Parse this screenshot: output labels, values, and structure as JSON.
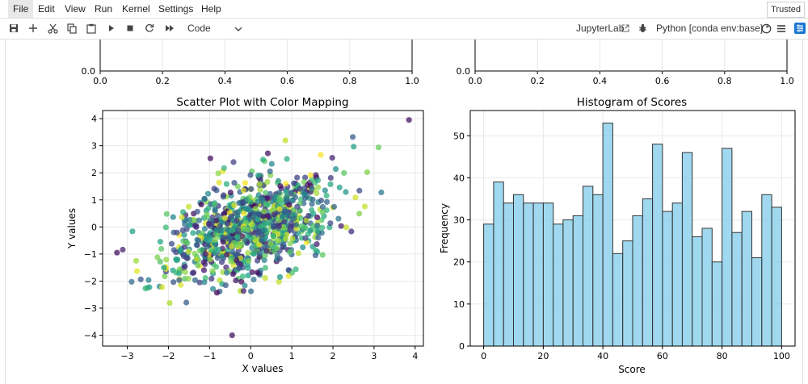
{
  "menubar": {
    "items": [
      "File",
      "Edit",
      "View",
      "Run",
      "Kernel",
      "Settings",
      "Help"
    ],
    "trusted": "Trusted"
  },
  "toolbar": {
    "cell_type": "Code",
    "jupyterlab_label": "JupyterLab",
    "kernel_name": "Python [conda env:base] *"
  },
  "icons": [
    "save-icon",
    "add-icon",
    "cut-icon",
    "copy-icon",
    "paste-icon",
    "run-icon",
    "stop-icon",
    "restart-icon",
    "fast-forward-icon",
    "chevron-down-icon",
    "external-link-icon",
    "bug-icon",
    "kernel-idle-icon",
    "menu-icon",
    "property-inspector-icon"
  ],
  "top_axes": {
    "ticks_x": [
      "0.0",
      "0.2",
      "0.4",
      "0.6",
      "0.8",
      "1.0"
    ],
    "tick_y": "0.0"
  },
  "chart_data": [
    {
      "type": "scatter",
      "title": "Scatter Plot with Color Mapping",
      "xlabel": "X values",
      "ylabel": "Y values",
      "xlim": [
        -3.6,
        4.2
      ],
      "ylim": [
        -4.4,
        4.3
      ],
      "xticks": [
        "−3",
        "−2",
        "−1",
        "0",
        "1",
        "2",
        "3",
        "4"
      ],
      "yticks": [
        "−4",
        "−3",
        "−2",
        "−1",
        "0",
        "1",
        "2",
        "3",
        "4"
      ],
      "grid": true,
      "n_points": 1000,
      "correlation": 0.5,
      "colormap": "viridis",
      "outliers": [
        [
          3.85,
          3.95
        ],
        [
          -3.25,
          -0.95
        ],
        [
          -0.45,
          -4.0
        ]
      ]
    },
    {
      "type": "bar",
      "title": "Histogram of Scores",
      "xlabel": "Score",
      "ylabel": "Frequency",
      "bin_start": 0,
      "bin_width": 3.333,
      "values": [
        29,
        39,
        34,
        36,
        34,
        34,
        34,
        29,
        30,
        31,
        38,
        36,
        53,
        22,
        25,
        31,
        35,
        48,
        32,
        34,
        46,
        26,
        28,
        20,
        47,
        27,
        32,
        21,
        36,
        33
      ],
      "xlim": [
        -4.5,
        104.5
      ],
      "ylim": [
        0,
        56
      ],
      "xticks": [
        "0",
        "20",
        "40",
        "60",
        "80",
        "100"
      ],
      "yticks": [
        "0",
        "10",
        "20",
        "30",
        "40",
        "50"
      ],
      "bar_color": "#87CEEB",
      "edge_color": "#333333",
      "grid": true
    }
  ]
}
